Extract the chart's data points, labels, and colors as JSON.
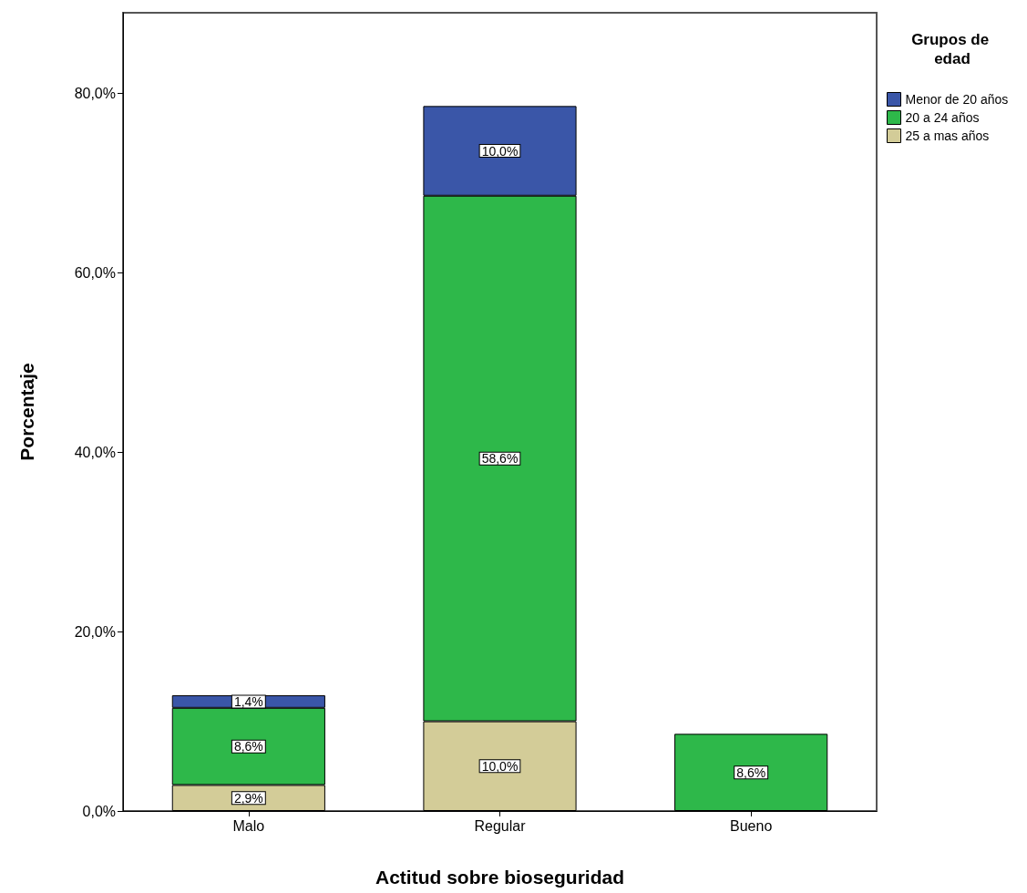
{
  "chart_data": {
    "type": "bar",
    "xlabel": "Actitud sobre bioseguridad",
    "ylabel": "Porcentaje",
    "legend_title": "Grupos de edad",
    "categories": [
      "Malo",
      "Regular",
      "Bueno"
    ],
    "stacked": true,
    "series": [
      {
        "name": "25 a mas años",
        "color": "#d3cc98",
        "values": [
          2.9,
          10.0,
          null
        ],
        "value_labels": [
          "2,9%",
          "10,0%",
          null
        ]
      },
      {
        "name": "20 a 24 años",
        "color": "#2eb84a",
        "values": [
          8.6,
          58.6,
          8.6
        ],
        "value_labels": [
          "8,6%",
          "58,6%",
          "8,6%"
        ]
      },
      {
        "name": "Menor de 20 años",
        "color": "#3a56a8",
        "values": [
          1.4,
          10.0,
          null
        ],
        "value_labels": [
          "1,4%",
          "10,0%",
          null
        ]
      }
    ],
    "ylim": [
      0,
      89
    ],
    "yticks": [
      {
        "value": 0,
        "label": "0,0%"
      },
      {
        "value": 20,
        "label": "20,0%"
      },
      {
        "value": 40,
        "label": "40,0%"
      },
      {
        "value": 60,
        "label": "60,0%"
      },
      {
        "value": 80,
        "label": "80,0%"
      }
    ],
    "grid": false,
    "legend": "top right"
  }
}
